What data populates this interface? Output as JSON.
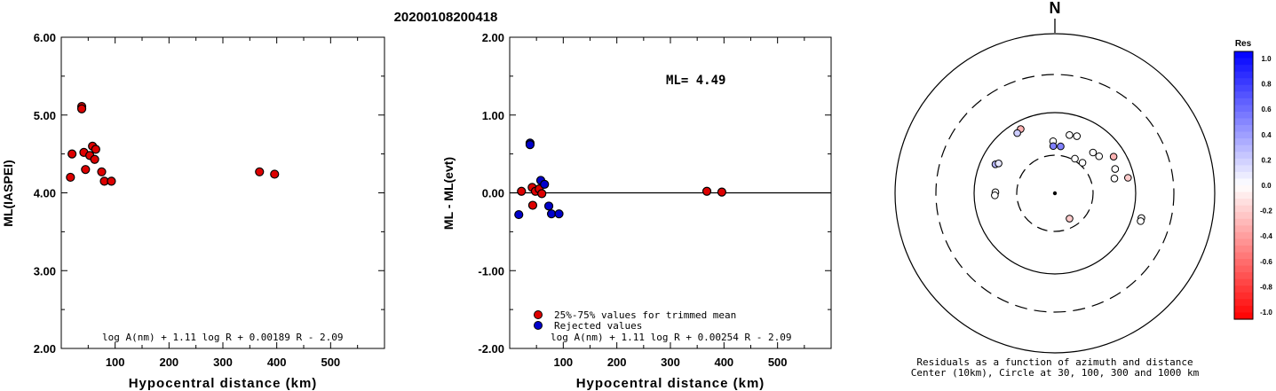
{
  "title": "20200108200418",
  "chart_data": [
    {
      "type": "scatter",
      "ylabel": "ML(IASPEI)",
      "xlabel": "Hypocentral distance (km)",
      "xlim": [
        0,
        600
      ],
      "ylim": [
        2.0,
        6.0
      ],
      "x_ticks": [
        "100",
        "200",
        "300",
        "400",
        "500"
      ],
      "y_ticks": [
        "2.00",
        "3.00",
        "4.00",
        "5.00",
        "6.00"
      ],
      "formula": "log A(nm) + 1.11 log R + 0.00189 R - 2.09",
      "series": [
        {
          "color": "#dd0000",
          "points": [
            [
              38,
              5.11
            ],
            [
              38,
              5.08
            ],
            [
              20,
              4.5
            ],
            [
              42,
              4.52
            ],
            [
              53,
              4.48
            ],
            [
              58,
              4.6
            ],
            [
              64,
              4.56
            ],
            [
              62,
              4.43
            ],
            [
              45,
              4.3
            ],
            [
              75,
              4.27
            ],
            [
              17,
              4.2
            ],
            [
              80,
              4.15
            ],
            [
              93,
              4.15
            ],
            [
              368,
              4.27
            ],
            [
              396,
              4.24
            ]
          ]
        }
      ]
    },
    {
      "type": "scatter",
      "ylabel": "ML - ML(evt)",
      "xlabel": "Hypocentral distance (km)",
      "xlim": [
        0,
        600
      ],
      "ylim": [
        -2.0,
        2.0
      ],
      "x_ticks": [
        "100",
        "200",
        "300",
        "400",
        "500"
      ],
      "y_ticks": [
        "-2.00",
        "-1.00",
        "0.00",
        "1.00",
        "2.00"
      ],
      "annotation": "ML= 4.49",
      "formula": "log A(nm) + 1.11 log R + 0.00254 R - 2.09",
      "zero_line": true,
      "legend": [
        {
          "label": "25%-75% values for trimmed mean",
          "color": "#dd0000"
        },
        {
          "label": "Rejected values",
          "color": "#0000cc"
        }
      ],
      "series": [
        {
          "name": "25%-75% values for trimmed mean",
          "color": "#dd0000",
          "points": [
            [
              22,
              0.02
            ],
            [
              42,
              0.07
            ],
            [
              48,
              0.02
            ],
            [
              55,
              0.05
            ],
            [
              60,
              -0.01
            ],
            [
              43,
              -0.16
            ],
            [
              368,
              0.02
            ],
            [
              396,
              0.01
            ]
          ]
        },
        {
          "name": "Rejected values",
          "color": "#0000cc",
          "points": [
            [
              38,
              0.64
            ],
            [
              38,
              0.62
            ],
            [
              58,
              0.16
            ],
            [
              65,
              0.11
            ],
            [
              17,
              -0.28
            ],
            [
              73,
              -0.17
            ],
            [
              78,
              -0.27
            ],
            [
              92,
              -0.27
            ]
          ]
        }
      ]
    },
    {
      "type": "scatter",
      "north_label": "N",
      "caption_line1": "Residuals as a function of azimuth and distance",
      "caption_line2": "Center (10km), Circle at 30, 100, 300 and 1000 km",
      "colorbar_title": "Res",
      "colorbar_ticks": [
        "1.0",
        "0.8",
        "0.6",
        "0.4",
        "0.2",
        "0.0",
        "-0.2",
        "-0.4",
        "-0.6",
        "-0.8",
        "-1.0"
      ],
      "stations": [
        {
          "az": 332,
          "dist": 87,
          "res": -0.3
        },
        {
          "az": 328,
          "dist": 84,
          "res": 0.2
        },
        {
          "az": 296,
          "dist": 76,
          "res": 0.3
        },
        {
          "az": 298,
          "dist": 72,
          "res": 0.1
        },
        {
          "az": 271,
          "dist": 65,
          "res": 0.0
        },
        {
          "az": 268,
          "dist": 66,
          "res": 0.0
        },
        {
          "az": 358,
          "dist": 53,
          "res": 0.0
        },
        {
          "az": 358,
          "dist": 45,
          "res": 0.5
        },
        {
          "az": 7,
          "dist": 45,
          "res": 0.5
        },
        {
          "az": 21,
          "dist": 68,
          "res": 0.0
        },
        {
          "az": 14,
          "dist": 66,
          "res": 0.0
        },
        {
          "az": 43,
          "dist": 59,
          "res": 0.0
        },
        {
          "az": 50,
          "dist": 62,
          "res": 0.0
        },
        {
          "az": 58,
          "dist": 81,
          "res": -0.3
        },
        {
          "az": 68,
          "dist": 74,
          "res": 0.0
        },
        {
          "az": 76,
          "dist": 68,
          "res": 0.0
        },
        {
          "az": 78,
          "dist": 90,
          "res": -0.2
        },
        {
          "az": 30,
          "dist": 33,
          "res": 0.0
        },
        {
          "az": 42,
          "dist": 35,
          "res": 0.0
        },
        {
          "az": 150,
          "dist": 23,
          "res": -0.2
        },
        {
          "az": 106,
          "dist": 148,
          "res": 0.0
        },
        {
          "az": 108,
          "dist": 149,
          "res": 0.0
        }
      ]
    }
  ]
}
